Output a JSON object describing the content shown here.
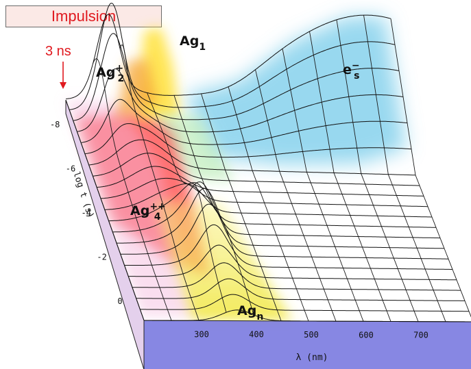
{
  "header": {
    "box_label": "Impulsion"
  },
  "chart_data": {
    "type": "waterfall-3d",
    "title": "",
    "xlabel": "λ (nm)",
    "ylabel": "log t (s)",
    "x_ticks": [
      300,
      400,
      500,
      600,
      700
    ],
    "y_ticks": [
      -8,
      -6,
      -4,
      -2,
      0
    ],
    "xlim": [
      200,
      800
    ],
    "ylim": [
      -9,
      1
    ],
    "pulse_time_label": "3 ns",
    "species": [
      {
        "name": "Ag1",
        "label_main": "Ag",
        "label_sub": "1",
        "label_sup": "",
        "peak_nm": 280,
        "peak_logt": -8.6
      },
      {
        "name": "Ag2+",
        "label_main": "Ag",
        "label_sub": "2",
        "label_sup": "+",
        "peak_nm": 265,
        "peak_logt": -8.2
      },
      {
        "name": "Ag4++",
        "label_main": "Ag",
        "label_sub": "4",
        "label_sup": "++",
        "peak_nm": 320,
        "peak_logt": -4.0
      },
      {
        "name": "Agn",
        "label_main": "Ag",
        "label_sub": "n",
        "label_sup": "",
        "peak_nm": 360,
        "peak_logt": -2.5
      },
      {
        "name": "es-",
        "label_main": "e",
        "label_sub": "s",
        "label_sup": "−",
        "peak_nm": 720,
        "peak_logt": -9.0
      }
    ],
    "colors": {
      "e_solv": "#6cc8e8",
      "ag_cluster": "#ff4040",
      "ag_n": "#f2e84a",
      "ag1": "#ffe23a",
      "ag2": "#f5a634",
      "base_front": "#7a7ae0",
      "base_side": "#e4d0ec",
      "annotation": "#e0191f"
    }
  }
}
